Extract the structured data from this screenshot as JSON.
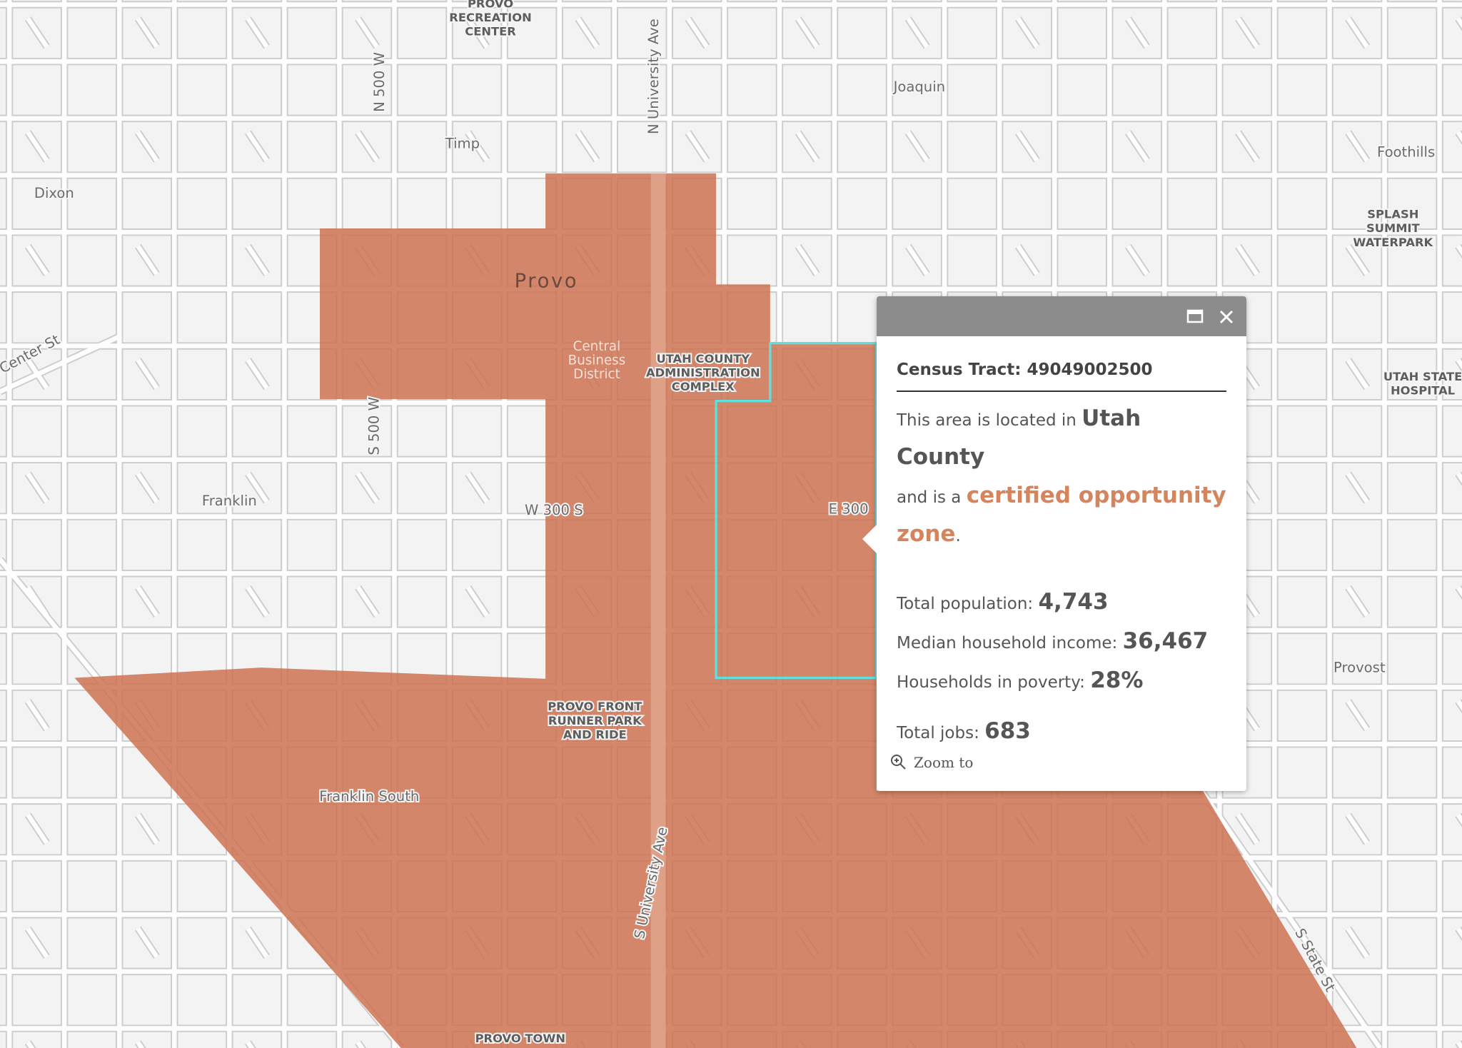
{
  "map_labels": [
    {
      "lines": [
        "PROVO",
        "RECREATION",
        "CENTER"
      ],
      "kind": "poi"
    },
    {
      "lines": [
        "N 500 W"
      ],
      "kind": "street-v"
    },
    {
      "lines": [
        "N University Ave"
      ],
      "kind": "street-v"
    },
    {
      "lines": [
        "Joaquin"
      ],
      "kind": "place"
    },
    {
      "lines": [
        "Timp"
      ],
      "kind": "place"
    },
    {
      "lines": [
        "Foothills"
      ],
      "kind": "place"
    },
    {
      "lines": [
        "Dixon"
      ],
      "kind": "place"
    },
    {
      "lines": [
        "SPLASH",
        "SUMMIT",
        "WATERPARK"
      ],
      "kind": "poi"
    },
    {
      "lines": [
        "Provo"
      ],
      "kind": "city"
    },
    {
      "lines": [
        "Center St"
      ],
      "kind": "street-d"
    },
    {
      "lines": [
        "Central",
        "Business",
        "District"
      ],
      "kind": "district"
    },
    {
      "lines": [
        "UTAH COUNTY",
        "ADMINISTRATION",
        "COMPLEX"
      ],
      "kind": "poi"
    },
    {
      "lines": [
        "UTAH STATE",
        "HOSPITAL"
      ],
      "kind": "poi"
    },
    {
      "lines": [
        "S 500 W"
      ],
      "kind": "street-v"
    },
    {
      "lines": [
        "Franklin"
      ],
      "kind": "place"
    },
    {
      "lines": [
        "W 300 S"
      ],
      "kind": "street"
    },
    {
      "lines": [
        "E 300"
      ],
      "kind": "street"
    },
    {
      "lines": [
        "Provost"
      ],
      "kind": "place"
    },
    {
      "lines": [
        "PROVO FRONT",
        "RUNNER PARK",
        "AND RIDE"
      ],
      "kind": "poi"
    },
    {
      "lines": [
        "Franklin South"
      ],
      "kind": "place"
    },
    {
      "lines": [
        "S University Ave"
      ],
      "kind": "street-v"
    },
    {
      "lines": [
        "S State St"
      ],
      "kind": "street-d2"
    },
    {
      "lines": [
        "PROVO TOWN"
      ],
      "kind": "poi"
    }
  ],
  "popup": {
    "title": "Census Tract: 49049002500",
    "line1": "This area is located in",
    "county": "Utah County",
    "line2": "and is a",
    "zone": "certified opportunity zone",
    "zone_end": ".",
    "stats": [
      {
        "label": "Total population:",
        "value": "4,743"
      },
      {
        "label": "Median household income:",
        "value": "36,467"
      },
      {
        "label": "Households in poverty:",
        "value": "28%"
      },
      {
        "label": "Total jobs:",
        "value": "683"
      }
    ],
    "zoom": "Zoom to"
  }
}
